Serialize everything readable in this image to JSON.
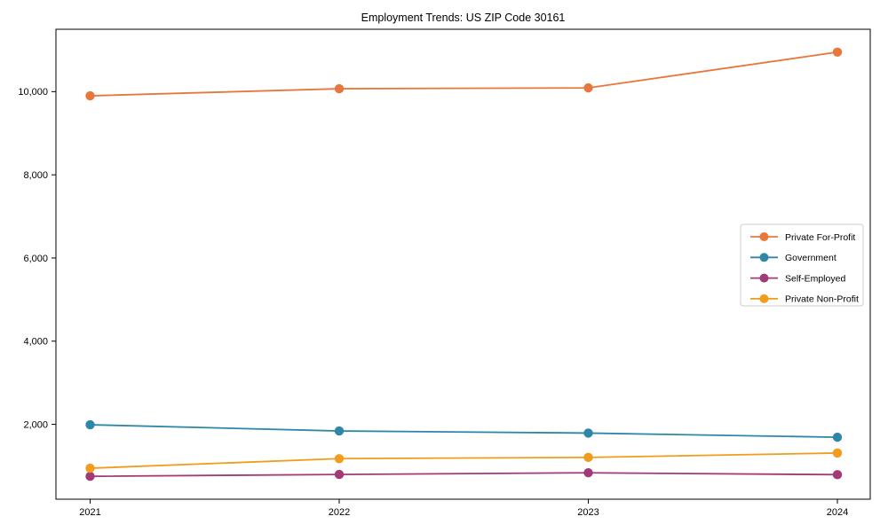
{
  "page": {
    "title": "Employment Trends: US ZIP Code 30161"
  },
  "chart_data": {
    "type": "line",
    "title": "Employment Trends: US ZIP Code 30161",
    "xlabel": "",
    "ylabel": "",
    "x": [
      2021,
      2022,
      2023,
      2024
    ],
    "x_tick_labels": [
      "2021",
      "2022",
      "2023",
      "2024"
    ],
    "series": [
      {
        "name": "Private For-Profit",
        "color": "#e8773d",
        "values": [
          9900,
          10070,
          10090,
          10950
        ]
      },
      {
        "name": "Government",
        "color": "#2f87a8",
        "values": [
          1990,
          1840,
          1790,
          1690
        ]
      },
      {
        "name": "Self-Employed",
        "color": "#a13a76",
        "values": [
          750,
          795,
          835,
          790
        ]
      },
      {
        "name": "Private Non-Profit",
        "color": "#f09c1c",
        "values": [
          945,
          1175,
          1205,
          1310
        ]
      }
    ],
    "yticks": {
      "values": [
        2000,
        4000,
        6000,
        8000,
        10000
      ],
      "labels": [
        "2,000",
        "4,000",
        "6,000",
        "8,000",
        "10,000"
      ]
    },
    "ylim": [
      200,
      11500
    ],
    "grid": false,
    "marker": "circle",
    "axis_color": "#000000",
    "legend": {
      "position": "center-right",
      "border_color": "#cccccc",
      "background": "#ffffff"
    }
  }
}
